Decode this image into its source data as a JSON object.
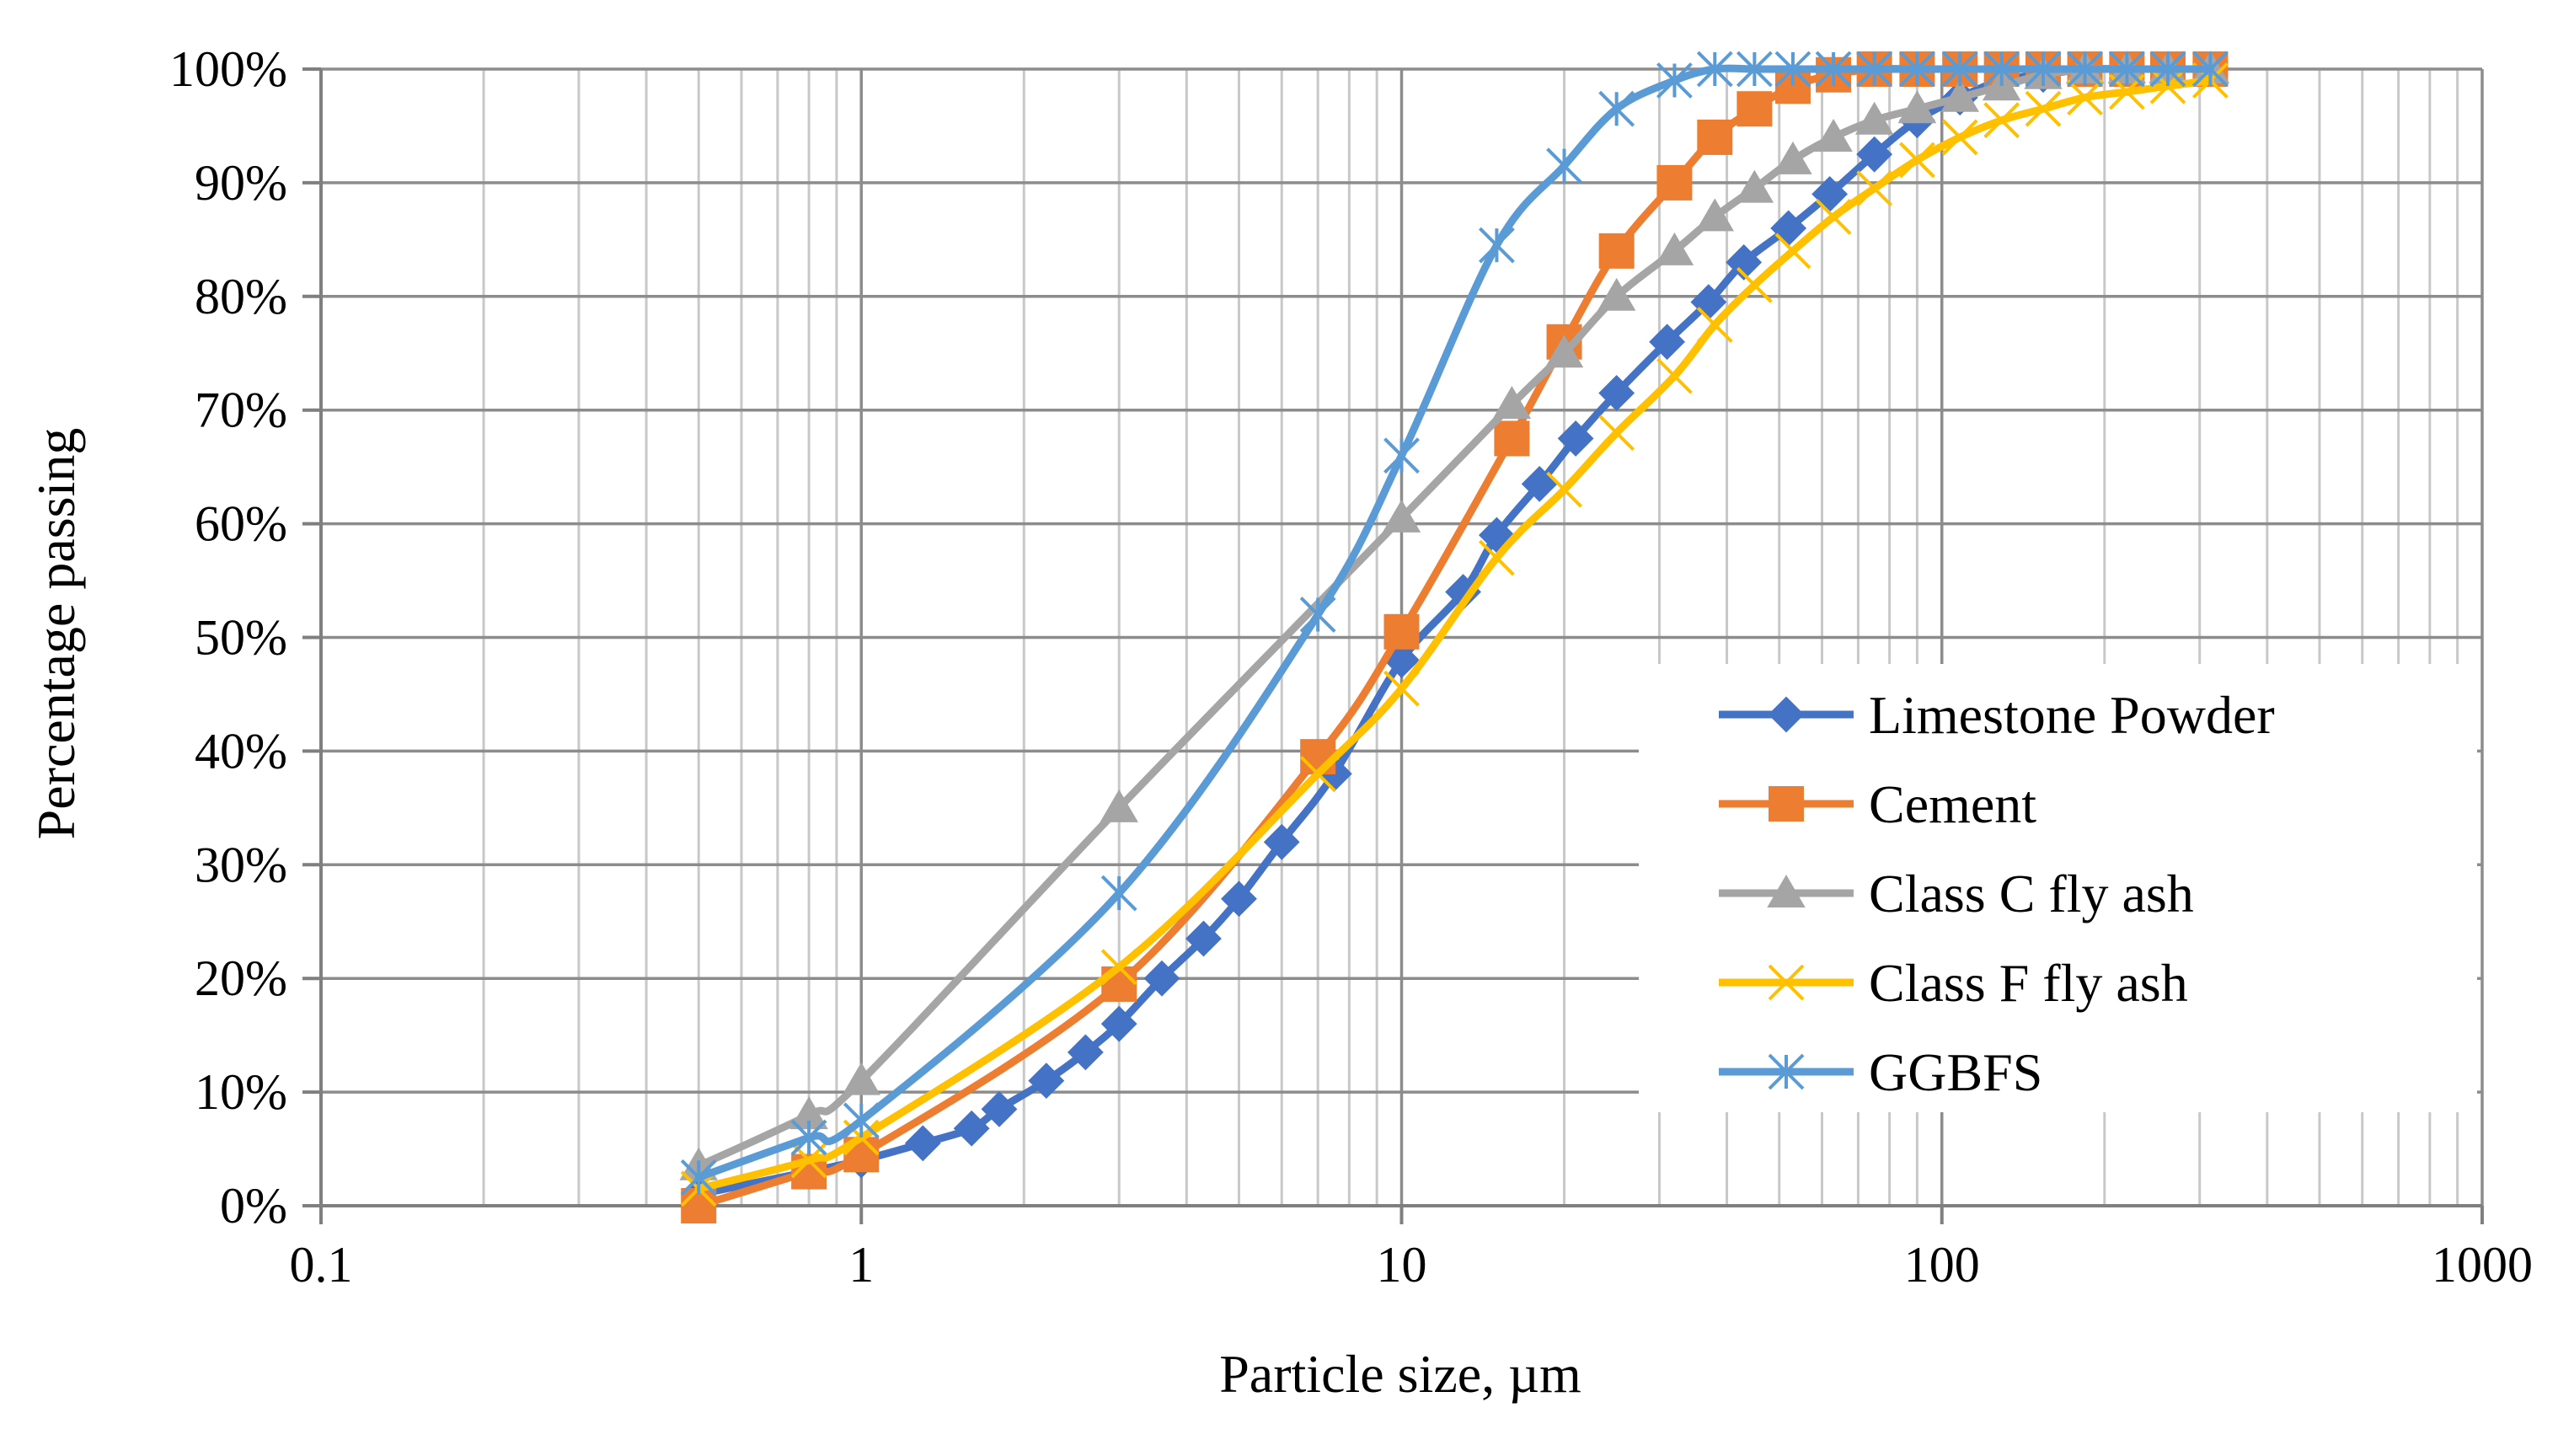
{
  "chart_data": {
    "type": "line",
    "x_scale": "log",
    "xlabel": "Particle size, µm",
    "ylabel": "Percentage passing",
    "xlim": [
      0.1,
      1000
    ],
    "ylim": [
      0,
      100
    ],
    "grid": true,
    "legend_position": "center-right",
    "x_ticks": [
      "0.1",
      "1",
      "10",
      "100",
      "1000"
    ],
    "y_ticks": [
      "0%",
      "10%",
      "20%",
      "30%",
      "40%",
      "50%",
      "60%",
      "70%",
      "80%",
      "90%",
      "100%"
    ],
    "series": [
      {
        "name": "Limestone Powder",
        "color": "#4472C4",
        "marker": "diamond",
        "x": [
          0.5,
          0.8,
          1.0,
          1.3,
          1.6,
          1.8,
          2.2,
          2.6,
          3.0,
          3.6,
          4.3,
          5.0,
          6.0,
          7.5,
          10,
          13,
          15,
          18,
          21,
          25,
          31,
          37,
          43,
          52,
          62,
          75,
          90,
          108,
          129,
          154,
          184,
          220,
          262,
          314
        ],
        "y": [
          1,
          3,
          4,
          5.5,
          6.8,
          8.5,
          11,
          13.5,
          16,
          20,
          23.5,
          27,
          32,
          38,
          48,
          54,
          59,
          63.5,
          67.5,
          71.5,
          76,
          79.5,
          83,
          86,
          89,
          92.5,
          95.5,
          97.5,
          99,
          99.5,
          100,
          100,
          100,
          100
        ]
      },
      {
        "name": "Cement",
        "color": "#ED7D31",
        "marker": "square",
        "x": [
          0.5,
          0.8,
          1.0,
          3.0,
          7.0,
          10,
          16,
          20,
          25,
          32,
          38,
          45,
          53,
          63,
          75,
          90,
          108,
          129,
          154,
          184,
          220,
          262,
          314
        ],
        "y": [
          0,
          3,
          4.5,
          19.5,
          39.5,
          50.5,
          67.5,
          76,
          84,
          90,
          94,
          96.5,
          98.5,
          99.5,
          100,
          100,
          100,
          100,
          100,
          100,
          100,
          100,
          100
        ]
      },
      {
        "name": "Class C fly ash",
        "color": "#A5A5A5",
        "marker": "triangle",
        "x": [
          0.5,
          0.8,
          1.0,
          3.0,
          10,
          16,
          20,
          25,
          32,
          38,
          45,
          53,
          63,
          75,
          90,
          108,
          129,
          154,
          184,
          220,
          262,
          314
        ],
        "y": [
          3.5,
          8,
          11,
          35,
          60.5,
          70.5,
          75,
          80,
          84,
          87,
          89.5,
          92,
          94,
          95.5,
          96.5,
          97.5,
          98.5,
          99.5,
          100,
          100,
          100,
          100
        ]
      },
      {
        "name": "Class F fly ash",
        "color": "#FFC000",
        "marker": "x",
        "x": [
          0.5,
          0.8,
          1.0,
          3.0,
          7.0,
          10,
          15,
          20,
          25,
          32,
          38,
          45,
          53,
          63,
          75,
          90,
          108,
          129,
          154,
          184,
          220,
          262,
          314
        ],
        "y": [
          1.5,
          4,
          6,
          21,
          38,
          45.5,
          57,
          63,
          68,
          73,
          77.5,
          81,
          84,
          87,
          89.5,
          92,
          94,
          95.5,
          96.5,
          97.5,
          98,
          98.5,
          99
        ]
      },
      {
        "name": "GGBFS",
        "color": "#5B9BD5",
        "marker": "star",
        "x": [
          0.5,
          0.8,
          1.0,
          3.0,
          7.0,
          10,
          15,
          20,
          25,
          32,
          38,
          45,
          53,
          63,
          75,
          90,
          108,
          129,
          154,
          184,
          220,
          262,
          314
        ],
        "y": [
          2.5,
          6,
          7.5,
          27.5,
          52,
          66,
          84.5,
          91.5,
          96.5,
          99,
          100,
          100,
          100,
          100,
          100,
          100,
          100,
          100,
          100,
          100,
          100,
          100,
          100
        ]
      }
    ]
  }
}
